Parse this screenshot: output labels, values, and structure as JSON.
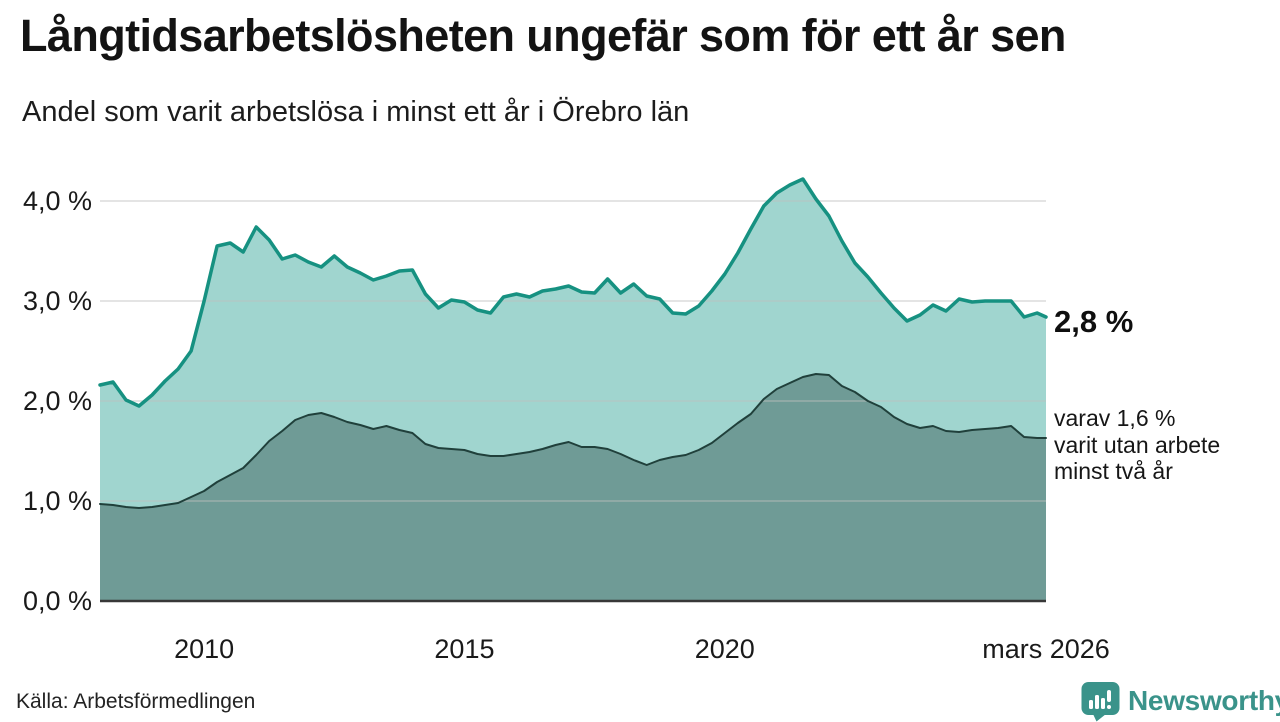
{
  "header": {
    "title": "Långtidsarbetslösheten ungefär som för ett år sen",
    "subtitle": "Andel som varit arbetslösa i minst ett år i Örebro län"
  },
  "chart_data": {
    "type": "area",
    "title": "Långtidsarbetslösheten ungefär som för ett år sen",
    "subtitle": "Andel som varit arbetslösa i minst ett år i Örebro län",
    "unit": "%",
    "xlim": [
      2008.0,
      2026.17
    ],
    "ylim": [
      0,
      4
    ],
    "grid": "horizontal",
    "legend": "none",
    "x": [
      2008,
      2008.25,
      2008.5,
      2008.75,
      2009,
      2009.25,
      2009.5,
      2009.75,
      2010,
      2010.25,
      2010.5,
      2010.75,
      2011,
      2011.25,
      2011.5,
      2011.75,
      2012,
      2012.25,
      2012.5,
      2012.75,
      2013,
      2013.25,
      2013.5,
      2013.75,
      2014,
      2014.25,
      2014.5,
      2014.75,
      2015,
      2015.25,
      2015.5,
      2015.75,
      2016,
      2016.25,
      2016.5,
      2016.75,
      2017,
      2017.25,
      2017.5,
      2017.75,
      2018,
      2018.25,
      2018.5,
      2018.75,
      2019,
      2019.25,
      2019.5,
      2019.75,
      2020,
      2020.25,
      2020.5,
      2020.75,
      2021,
      2021.25,
      2021.5,
      2021.75,
      2022,
      2022.25,
      2022.5,
      2022.75,
      2023,
      2023.25,
      2023.5,
      2023.75,
      2024,
      2024.25,
      2024.5,
      2024.75,
      2025,
      2025.25,
      2025.5,
      2025.75,
      2026,
      2026.17
    ],
    "series": [
      {
        "name": "Arbetslösa minst ett år",
        "end_value": 2.8,
        "line_color": "#169181",
        "fill_color": "#a0d5cf",
        "line_width": 3.5,
        "values": [
          2.16,
          2.19,
          2.01,
          1.95,
          2.06,
          2.2,
          2.32,
          2.5,
          3.0,
          3.55,
          3.58,
          3.49,
          3.74,
          3.61,
          3.42,
          3.46,
          3.39,
          3.34,
          3.45,
          3.34,
          3.28,
          3.21,
          3.25,
          3.3,
          3.31,
          3.07,
          2.93,
          3.01,
          2.99,
          2.91,
          2.88,
          3.04,
          3.07,
          3.04,
          3.1,
          3.12,
          3.15,
          3.09,
          3.08,
          3.22,
          3.08,
          3.17,
          3.05,
          3.02,
          2.88,
          2.87,
          2.95,
          3.1,
          3.27,
          3.48,
          3.72,
          3.95,
          4.08,
          4.16,
          4.22,
          4.02,
          3.85,
          3.6,
          3.38,
          3.24,
          3.08,
          2.93,
          2.8,
          2.86,
          2.96,
          2.9,
          3.02,
          2.99,
          3.0,
          3.0,
          3.0,
          2.84,
          2.88,
          2.84
        ]
      },
      {
        "name": "Arbetslösa minst två år",
        "end_value": 1.6,
        "line_color": "#20403b",
        "fill_color": "#6f9b96",
        "line_width": 2,
        "values": [
          0.97,
          0.96,
          0.94,
          0.93,
          0.94,
          0.96,
          0.98,
          1.04,
          1.1,
          1.19,
          1.26,
          1.33,
          1.46,
          1.6,
          1.7,
          1.81,
          1.86,
          1.88,
          1.84,
          1.79,
          1.76,
          1.72,
          1.75,
          1.71,
          1.68,
          1.57,
          1.53,
          1.52,
          1.51,
          1.47,
          1.45,
          1.45,
          1.47,
          1.49,
          1.52,
          1.56,
          1.59,
          1.54,
          1.54,
          1.52,
          1.47,
          1.41,
          1.36,
          1.41,
          1.44,
          1.46,
          1.51,
          1.58,
          1.68,
          1.78,
          1.87,
          2.02,
          2.12,
          2.18,
          2.24,
          2.27,
          2.26,
          2.15,
          2.09,
          2.0,
          1.94,
          1.84,
          1.77,
          1.73,
          1.75,
          1.7,
          1.69,
          1.71,
          1.72,
          1.73,
          1.75,
          1.64,
          1.63,
          1.63
        ]
      }
    ],
    "x_ticks": [
      {
        "t": 2010,
        "label": "2010"
      },
      {
        "t": 2015,
        "label": "2015"
      },
      {
        "t": 2020,
        "label": "2020"
      },
      {
        "t": 2026.17,
        "label": "mars 2026"
      }
    ],
    "y_ticks": [
      {
        "v": 0,
        "label": "0,0 %"
      },
      {
        "v": 1,
        "label": "1,0 %"
      },
      {
        "v": 2,
        "label": "2,0 %"
      },
      {
        "v": 3,
        "label": "3,0 %"
      },
      {
        "v": 4,
        "label": "4,0 %"
      }
    ]
  },
  "annotations": {
    "latest_total": "2,8 %",
    "two_year_line1": "varav 1,6 %",
    "two_year_line2": "varit utan arbete",
    "two_year_line3": "minst två år"
  },
  "footer": {
    "source": "Källa: Arbetsförmedlingen",
    "brand": "Newsworthy"
  },
  "colors": {
    "grid": "#dcdcdc",
    "baseline": "#383838",
    "tick_text": "#1a1a1a",
    "brand_teal": "#3a938a"
  }
}
